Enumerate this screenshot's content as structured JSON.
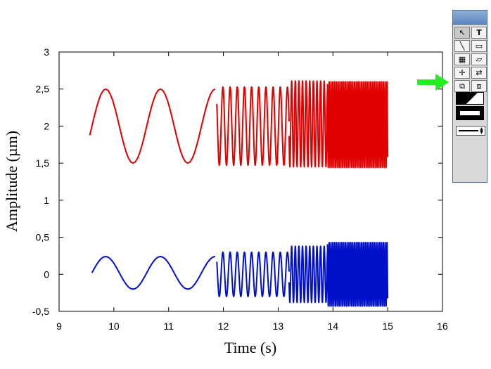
{
  "chart_data": {
    "type": "line",
    "title": "",
    "xlabel": "Time (s)",
    "ylabel": "Amplitude (µm)",
    "xlim": [
      9,
      16
    ],
    "ylim": [
      -0.5,
      3
    ],
    "x_ticks": [
      "9",
      "10",
      "11",
      "12",
      "13",
      "14",
      "15",
      "16"
    ],
    "y_ticks": [
      "-0,5",
      "0",
      "0,5",
      "1",
      "1,5",
      "2",
      "2,5",
      "3"
    ],
    "x_tick_values": [
      9,
      10,
      11,
      12,
      13,
      14,
      15,
      16
    ],
    "y_tick_values": [
      -0.5,
      0,
      0.5,
      1,
      1.5,
      2,
      2.5,
      3
    ],
    "grid": false,
    "series": [
      {
        "color": "#e00000",
        "segments": [
          {
            "t_start": 9.56,
            "t_end": 11.85,
            "center": 2.0,
            "amplitude": 0.5,
            "period": 1.0
          },
          {
            "t_start": 11.88,
            "t_end": 13.2,
            "center": 2.0,
            "amplitude": 0.53,
            "period": 0.131
          },
          {
            "t_start": 13.2,
            "t_end": 13.9,
            "center": 2.03,
            "amplitude": 0.58,
            "period": 0.066
          },
          {
            "t_start": 13.9,
            "t_end": 15.0,
            "center": 2.02,
            "amplitude": 0.58,
            "period": 0.033
          }
        ]
      },
      {
        "color": "#0010c8",
        "segments": [
          {
            "t_start": 9.6,
            "t_end": 11.85,
            "center": 0.02,
            "amplitude": 0.22,
            "period": 1.0
          },
          {
            "t_start": 11.88,
            "t_end": 13.2,
            "center": 0.0,
            "amplitude": 0.3,
            "period": 0.131
          },
          {
            "t_start": 13.2,
            "t_end": 13.9,
            "center": 0.0,
            "amplitude": 0.38,
            "period": 0.066
          },
          {
            "t_start": 13.9,
            "t_end": 15.0,
            "center": 0.0,
            "amplitude": 0.43,
            "period": 0.033
          }
        ]
      }
    ]
  },
  "annotations": {
    "green_arrow_color": "#22ee22",
    "yellow_arrow_color": "#ffff00"
  },
  "palette": {
    "tools": [
      "select-arrow-icon",
      "text-tool-icon",
      "line-tool-icon",
      "rectangle-tool-icon",
      "table-tool-icon",
      "eraser-tool-icon",
      "crosshair-tool-icon",
      "connector-tool-icon",
      "bring-front-icon",
      "send-back-icon"
    ]
  }
}
